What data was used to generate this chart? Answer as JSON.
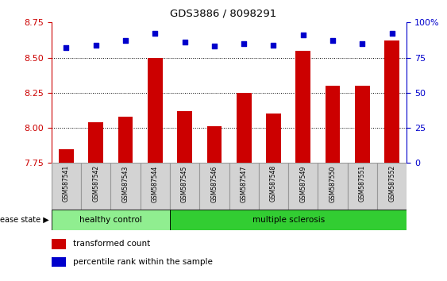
{
  "title": "GDS3886 / 8098291",
  "samples": [
    "GSM587541",
    "GSM587542",
    "GSM587543",
    "GSM587544",
    "GSM587545",
    "GSM587546",
    "GSM587547",
    "GSM587548",
    "GSM587549",
    "GSM587550",
    "GSM587551",
    "GSM587552"
  ],
  "bar_values": [
    7.85,
    8.04,
    8.08,
    8.5,
    8.12,
    8.01,
    8.25,
    8.1,
    8.55,
    8.3,
    8.3,
    8.62
  ],
  "dot_values": [
    82,
    84,
    87,
    92,
    86,
    83,
    85,
    84,
    91,
    87,
    85,
    92
  ],
  "bar_color": "#cc0000",
  "dot_color": "#0000cc",
  "ylim_left": [
    7.75,
    8.75
  ],
  "ylim_right": [
    0,
    100
  ],
  "yticks_left": [
    7.75,
    8.0,
    8.25,
    8.5,
    8.75
  ],
  "yticks_right": [
    0,
    25,
    50,
    75,
    100
  ],
  "grid_lines": [
    8.0,
    8.25,
    8.5
  ],
  "healthy_count": 4,
  "disease_labels": [
    "healthy control",
    "multiple sclerosis"
  ],
  "legend_bar_label": "transformed count",
  "legend_dot_label": "percentile rank within the sample",
  "disease_state_label": "disease state",
  "healthy_color": "#90ee90",
  "ms_color": "#32cd32",
  "bar_bottom": 7.75,
  "tick_label_color": "#cc0000",
  "dot_color_str": "#0000cc",
  "label_box_color": "#d3d3d3",
  "label_box_edge": "#999999"
}
